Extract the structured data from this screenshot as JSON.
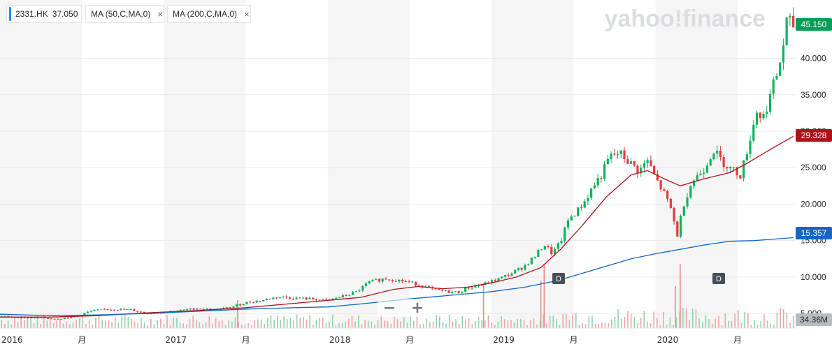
{
  "watermark": "yahoo!finance",
  "indicators": {
    "symbol_label": "2331.HK",
    "symbol_value": "37.050",
    "ma50_label": "MA (50,C,MA,0)",
    "ma200_label": "MA (200,C,MA,0)",
    "close_glyph": "×"
  },
  "zoom": {
    "minus": "−",
    "plus": "+"
  },
  "price_tags": [
    {
      "value": "45.150",
      "color": "#0a9d58"
    },
    {
      "value": "29.328",
      "color": "#b0121b"
    },
    {
      "value": "15.357",
      "color": "#1266c5"
    },
    {
      "value": "34.36M",
      "color": "#b8bcc1"
    }
  ],
  "event_markers": [
    "D",
    "D"
  ],
  "chart_data": {
    "type": "line",
    "ylim": [
      3.0,
      48.0
    ],
    "y_ticks": [
      5.0,
      10.0,
      15.0,
      20.0,
      25.0,
      30.0,
      35.0,
      40.0
    ],
    "y_tick_labels": [
      "5.000",
      "10.000",
      "15.000",
      "20.000",
      "25.000",
      "30.000",
      "35.000",
      "40.000"
    ],
    "x_ticks": [
      "2016",
      "月",
      "2017",
      "月",
      "2018",
      "月",
      "2019",
      "月",
      "2020",
      "月"
    ],
    "x_tick_positions": [
      2016.0,
      2016.5,
      2017.0,
      2017.5,
      2018.0,
      2018.5,
      2019.0,
      2019.5,
      2020.0,
      2020.5
    ],
    "xlim": [
      2016.0,
      2020.85
    ],
    "price_path": [
      [
        2016.0,
        4.6
      ],
      [
        2016.1,
        4.5
      ],
      [
        2016.2,
        4.4
      ],
      [
        2016.35,
        4.3
      ],
      [
        2016.45,
        4.5
      ],
      [
        2016.55,
        5.3
      ],
      [
        2016.65,
        5.6
      ],
      [
        2016.8,
        5.5
      ],
      [
        2016.9,
        5.0
      ],
      [
        2017.0,
        5.2
      ],
      [
        2017.1,
        5.4
      ],
      [
        2017.2,
        5.7
      ],
      [
        2017.3,
        5.5
      ],
      [
        2017.4,
        5.8
      ],
      [
        2017.5,
        6.5
      ],
      [
        2017.6,
        6.8
      ],
      [
        2017.7,
        7.3
      ],
      [
        2017.8,
        7.1
      ],
      [
        2017.9,
        7.0
      ],
      [
        2018.0,
        6.8
      ],
      [
        2018.1,
        7.4
      ],
      [
        2018.18,
        8.0
      ],
      [
        2018.25,
        9.3
      ],
      [
        2018.35,
        9.8
      ],
      [
        2018.45,
        9.5
      ],
      [
        2018.55,
        9.0
      ],
      [
        2018.65,
        8.2
      ],
      [
        2018.72,
        8.0
      ],
      [
        2018.8,
        7.9
      ],
      [
        2018.85,
        8.5
      ],
      [
        2018.95,
        9.0
      ],
      [
        2019.05,
        9.8
      ],
      [
        2019.12,
        10.5
      ],
      [
        2019.2,
        11.5
      ],
      [
        2019.27,
        13.0
      ],
      [
        2019.32,
        14.5
      ],
      [
        2019.37,
        13.2
      ],
      [
        2019.42,
        14.8
      ],
      [
        2019.47,
        18.0
      ],
      [
        2019.52,
        19.0
      ],
      [
        2019.57,
        20.5
      ],
      [
        2019.62,
        22.5
      ],
      [
        2019.67,
        24.0
      ],
      [
        2019.72,
        26.5
      ],
      [
        2019.78,
        27.0
      ],
      [
        2019.85,
        25.5
      ],
      [
        2019.9,
        24.5
      ],
      [
        2019.95,
        26.0
      ],
      [
        2020.0,
        23.5
      ],
      [
        2020.05,
        21.5
      ],
      [
        2020.1,
        19.0
      ],
      [
        2020.13,
        15.5
      ],
      [
        2020.17,
        20.0
      ],
      [
        2020.22,
        23.0
      ],
      [
        2020.3,
        25.0
      ],
      [
        2020.35,
        27.5
      ],
      [
        2020.4,
        26.0
      ],
      [
        2020.45,
        25.0
      ],
      [
        2020.52,
        24.0
      ],
      [
        2020.57,
        28.5
      ],
      [
        2020.62,
        33.0
      ],
      [
        2020.65,
        31.5
      ],
      [
        2020.7,
        35.0
      ],
      [
        2020.75,
        38.5
      ],
      [
        2020.78,
        42.0
      ],
      [
        2020.8,
        45.0
      ],
      [
        2020.84,
        44.5
      ]
    ],
    "series": [
      {
        "name": "MA (50,C,MA,0)",
        "color": "#b0121b",
        "points": [
          [
            2016.0,
            4.5
          ],
          [
            2016.3,
            4.5
          ],
          [
            2016.6,
            4.7
          ],
          [
            2016.9,
            5.1
          ],
          [
            2017.2,
            5.4
          ],
          [
            2017.5,
            5.8
          ],
          [
            2017.8,
            6.4
          ],
          [
            2018.0,
            6.8
          ],
          [
            2018.2,
            7.2
          ],
          [
            2018.4,
            8.3
          ],
          [
            2018.55,
            8.7
          ],
          [
            2018.7,
            8.4
          ],
          [
            2018.85,
            8.6
          ],
          [
            2019.0,
            9.2
          ],
          [
            2019.15,
            10.0
          ],
          [
            2019.3,
            11.3
          ],
          [
            2019.42,
            13.8
          ],
          [
            2019.55,
            17.0
          ],
          [
            2019.7,
            21.0
          ],
          [
            2019.85,
            24.0
          ],
          [
            2019.95,
            24.6
          ],
          [
            2020.05,
            23.5
          ],
          [
            2020.15,
            22.5
          ],
          [
            2020.3,
            23.5
          ],
          [
            2020.45,
            24.3
          ],
          [
            2020.55,
            25.5
          ],
          [
            2020.7,
            27.5
          ],
          [
            2020.84,
            29.3
          ]
        ]
      },
      {
        "name": "MA (200,C,MA,0)",
        "color": "#1266c5",
        "points": [
          [
            2016.0,
            4.9
          ],
          [
            2016.3,
            4.7
          ],
          [
            2016.6,
            4.8
          ],
          [
            2016.9,
            5.0
          ],
          [
            2017.2,
            5.3
          ],
          [
            2017.5,
            5.6
          ],
          [
            2017.8,
            5.8
          ],
          [
            2018.0,
            5.9
          ],
          [
            2018.2,
            6.3
          ],
          [
            2018.5,
            7.0
          ],
          [
            2018.8,
            7.6
          ],
          [
            2019.0,
            8.0
          ],
          [
            2019.2,
            8.6
          ],
          [
            2019.4,
            9.5
          ],
          [
            2019.55,
            10.5
          ],
          [
            2019.7,
            11.5
          ],
          [
            2019.85,
            12.5
          ],
          [
            2020.0,
            13.2
          ],
          [
            2020.15,
            13.8
          ],
          [
            2020.3,
            14.4
          ],
          [
            2020.45,
            14.9
          ],
          [
            2020.6,
            15.0
          ],
          [
            2020.72,
            15.2
          ],
          [
            2020.84,
            15.4
          ]
        ]
      }
    ],
    "volume_spikes": [
      [
        2017.45,
        1.0
      ],
      [
        2018.95,
        1.6
      ],
      [
        2019.3,
        1.7
      ],
      [
        2019.32,
        2.3
      ],
      [
        2020.12,
        1.5
      ],
      [
        2020.15,
        2.3
      ]
    ]
  }
}
